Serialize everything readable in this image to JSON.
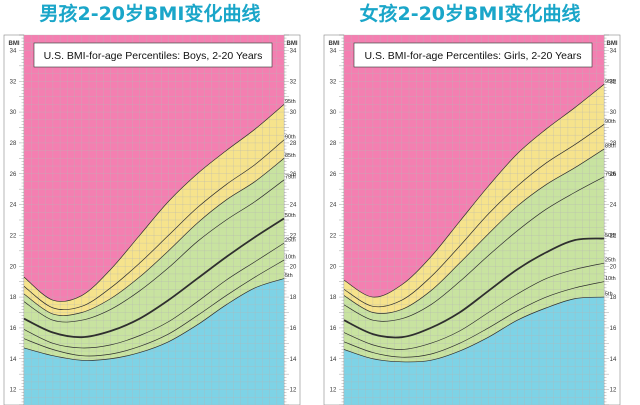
{
  "colors": {
    "title": "#1aa6c9",
    "obese": "#f47fb1",
    "overweight": "#f6e38c",
    "healthy": "#c8e3a0",
    "underweight": "#7ed3e6",
    "line": "#2f2f2f",
    "grid": "#b6b6b6"
  },
  "chart_data": [
    {
      "type": "line",
      "title": "男孩2-20岁BMI变化曲线",
      "subtitle": "U.S. BMI-for-age Percentiles: Boys, 2-20 Years",
      "ylabel": "BMI",
      "xlim": [
        2,
        20
      ],
      "ylim": [
        11,
        35
      ],
      "yticks": [
        12,
        14,
        16,
        18,
        20,
        22,
        24,
        26,
        28,
        30,
        32,
        34
      ],
      "grid": true,
      "x": [
        2,
        4,
        6,
        8,
        10,
        12,
        14,
        16,
        18,
        20
      ],
      "series": [
        {
          "name": "95th",
          "values": [
            19.3,
            17.8,
            18.1,
            19.8,
            22.0,
            24.2,
            26.0,
            27.5,
            28.9,
            30.5
          ]
        },
        {
          "name": "90th",
          "values": [
            18.7,
            17.3,
            17.4,
            18.6,
            20.2,
            22.0,
            23.8,
            25.3,
            26.6,
            28.2
          ]
        },
        {
          "name": "85th",
          "values": [
            18.2,
            16.9,
            17.0,
            17.9,
            19.3,
            21.0,
            22.8,
            24.3,
            25.5,
            27.0
          ]
        },
        {
          "name": "75th",
          "values": [
            17.7,
            16.5,
            16.5,
            17.2,
            18.4,
            19.9,
            21.6,
            23.0,
            24.2,
            25.6
          ]
        },
        {
          "name": "50th",
          "values": [
            16.6,
            15.7,
            15.4,
            15.8,
            16.6,
            17.8,
            19.2,
            20.6,
            21.9,
            23.1
          ]
        },
        {
          "name": "25th",
          "values": [
            15.9,
            15.0,
            14.7,
            14.9,
            15.5,
            16.4,
            17.7,
            19.1,
            20.3,
            21.5
          ]
        },
        {
          "name": "10th",
          "values": [
            15.3,
            14.6,
            14.2,
            14.3,
            14.8,
            15.6,
            16.8,
            18.1,
            19.3,
            20.4
          ]
        },
        {
          "name": "5th",
          "values": [
            14.7,
            14.2,
            13.9,
            14.0,
            14.4,
            15.1,
            16.2,
            17.5,
            18.6,
            19.2
          ]
        }
      ]
    },
    {
      "type": "line",
      "title": "女孩2-20岁BMI变化曲线",
      "subtitle": "U.S. BMI-for-age Percentiles: Girls, 2-20 Years",
      "ylabel": "BMI",
      "xlim": [
        2,
        20
      ],
      "ylim": [
        11,
        35
      ],
      "yticks": [
        12,
        14,
        16,
        18,
        20,
        22,
        24,
        26,
        28,
        30,
        32,
        34
      ],
      "grid": true,
      "x": [
        2,
        4,
        6,
        8,
        10,
        12,
        14,
        16,
        18,
        20
      ],
      "series": [
        {
          "name": "95th",
          "values": [
            19.1,
            18.0,
            18.8,
            20.6,
            22.9,
            25.2,
            27.3,
            28.9,
            30.3,
            31.8
          ]
        },
        {
          "name": "90th",
          "values": [
            18.5,
            17.4,
            17.8,
            19.3,
            21.3,
            23.4,
            25.2,
            26.7,
            27.9,
            29.2
          ]
        },
        {
          "name": "85th",
          "values": [
            18.1,
            17.0,
            17.2,
            18.4,
            20.2,
            22.1,
            23.9,
            25.3,
            26.4,
            27.6
          ]
        },
        {
          "name": "75th",
          "values": [
            17.5,
            16.5,
            16.6,
            17.5,
            19.0,
            20.7,
            22.3,
            23.7,
            24.8,
            25.8
          ]
        },
        {
          "name": "50th",
          "values": [
            16.5,
            15.6,
            15.4,
            16.0,
            17.0,
            18.4,
            19.8,
            20.9,
            21.7,
            21.8
          ]
        },
        {
          "name": "25th",
          "values": [
            15.7,
            14.9,
            14.6,
            15.0,
            15.8,
            17.0,
            18.2,
            19.2,
            19.8,
            20.2
          ]
        },
        {
          "name": "10th",
          "values": [
            15.1,
            14.4,
            14.1,
            14.3,
            15.0,
            16.0,
            17.1,
            18.0,
            18.6,
            19.0
          ]
        },
        {
          "name": "5th",
          "values": [
            14.6,
            14.0,
            13.8,
            13.9,
            14.5,
            15.4,
            16.5,
            17.3,
            17.9,
            18.0
          ]
        }
      ]
    }
  ]
}
